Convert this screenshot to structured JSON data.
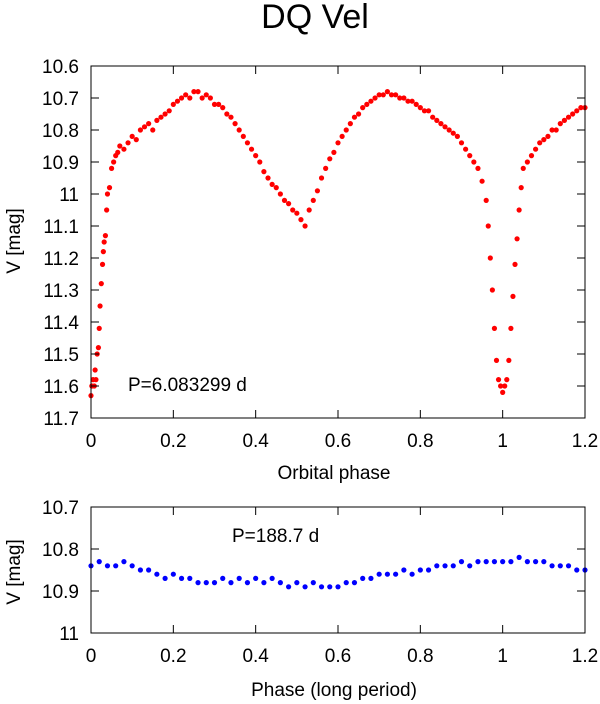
{
  "figure": {
    "title": "DQ Vel",
    "colors": {
      "top_series": "#ff0000",
      "bottom_series": "#0000ff"
    }
  },
  "chart_data": [
    {
      "type": "scatter",
      "name": "orbital-phase-light-curve",
      "title": "DQ Vel",
      "xlabel": "Orbital phase",
      "ylabel": "V [mag]",
      "xlim": [
        0,
        1.2
      ],
      "ylim": [
        11.7,
        10.6
      ],
      "y_inverted": true,
      "xticks": [
        "0",
        "0.2",
        "0.4",
        "0.6",
        "0.8",
        "1",
        "1.2"
      ],
      "yticks": [
        "10.6",
        "10.7",
        "10.8",
        "10.9",
        "11",
        "11.1",
        "11.2",
        "11.3",
        "11.4",
        "11.5",
        "11.6",
        "11.7"
      ],
      "annotation": "P=6.083299 d",
      "color": "#ff0000",
      "series": [
        {
          "name": "V magnitude",
          "points": [
            [
              0.0,
              11.63
            ],
            [
              0.002,
              11.6
            ],
            [
              0.005,
              11.58
            ],
            [
              0.008,
              11.6
            ],
            [
              0.01,
              11.55
            ],
            [
              0.012,
              11.58
            ],
            [
              0.015,
              11.5
            ],
            [
              0.018,
              11.48
            ],
            [
              0.02,
              11.42
            ],
            [
              0.022,
              11.35
            ],
            [
              0.025,
              11.28
            ],
            [
              0.028,
              11.22
            ],
            [
              0.03,
              11.18
            ],
            [
              0.032,
              11.15
            ],
            [
              0.035,
              11.13
            ],
            [
              0.038,
              11.05
            ],
            [
              0.04,
              11.0
            ],
            [
              0.045,
              10.98
            ],
            [
              0.05,
              10.92
            ],
            [
              0.055,
              10.9
            ],
            [
              0.06,
              10.88
            ],
            [
              0.065,
              10.87
            ],
            [
              0.07,
              10.85
            ],
            [
              0.08,
              10.86
            ],
            [
              0.09,
              10.84
            ],
            [
              0.1,
              10.82
            ],
            [
              0.11,
              10.83
            ],
            [
              0.12,
              10.8
            ],
            [
              0.13,
              10.79
            ],
            [
              0.14,
              10.78
            ],
            [
              0.15,
              10.8
            ],
            [
              0.16,
              10.77
            ],
            [
              0.17,
              10.76
            ],
            [
              0.18,
              10.75
            ],
            [
              0.19,
              10.74
            ],
            [
              0.2,
              10.72
            ],
            [
              0.21,
              10.71
            ],
            [
              0.22,
              10.7
            ],
            [
              0.23,
              10.69
            ],
            [
              0.24,
              10.7
            ],
            [
              0.25,
              10.68
            ],
            [
              0.26,
              10.68
            ],
            [
              0.27,
              10.7
            ],
            [
              0.28,
              10.69
            ],
            [
              0.29,
              10.7
            ],
            [
              0.3,
              10.72
            ],
            [
              0.31,
              10.72
            ],
            [
              0.32,
              10.73
            ],
            [
              0.33,
              10.75
            ],
            [
              0.34,
              10.76
            ],
            [
              0.35,
              10.78
            ],
            [
              0.36,
              10.8
            ],
            [
              0.37,
              10.82
            ],
            [
              0.38,
              10.84
            ],
            [
              0.39,
              10.86
            ],
            [
              0.4,
              10.88
            ],
            [
              0.41,
              10.9
            ],
            [
              0.42,
              10.93
            ],
            [
              0.43,
              10.95
            ],
            [
              0.44,
              10.97
            ],
            [
              0.45,
              10.98
            ],
            [
              0.46,
              11.0
            ],
            [
              0.47,
              11.02
            ],
            [
              0.48,
              11.03
            ],
            [
              0.49,
              11.05
            ],
            [
              0.5,
              11.06
            ],
            [
              0.51,
              11.08
            ],
            [
              0.52,
              11.1
            ],
            [
              0.53,
              11.05
            ],
            [
              0.54,
              11.02
            ],
            [
              0.55,
              10.99
            ],
            [
              0.56,
              10.95
            ],
            [
              0.57,
              10.92
            ],
            [
              0.58,
              10.89
            ],
            [
              0.59,
              10.87
            ],
            [
              0.6,
              10.84
            ],
            [
              0.61,
              10.82
            ],
            [
              0.62,
              10.8
            ],
            [
              0.63,
              10.78
            ],
            [
              0.64,
              10.76
            ],
            [
              0.65,
              10.75
            ],
            [
              0.66,
              10.73
            ],
            [
              0.67,
              10.72
            ],
            [
              0.68,
              10.71
            ],
            [
              0.69,
              10.7
            ],
            [
              0.7,
              10.69
            ],
            [
              0.71,
              10.69
            ],
            [
              0.72,
              10.68
            ],
            [
              0.73,
              10.69
            ],
            [
              0.74,
              10.69
            ],
            [
              0.75,
              10.7
            ],
            [
              0.76,
              10.7
            ],
            [
              0.77,
              10.71
            ],
            [
              0.78,
              10.71
            ],
            [
              0.79,
              10.72
            ],
            [
              0.8,
              10.73
            ],
            [
              0.81,
              10.74
            ],
            [
              0.82,
              10.74
            ],
            [
              0.83,
              10.76
            ],
            [
              0.84,
              10.77
            ],
            [
              0.85,
              10.78
            ],
            [
              0.86,
              10.79
            ],
            [
              0.87,
              10.8
            ],
            [
              0.88,
              10.81
            ],
            [
              0.89,
              10.82
            ],
            [
              0.9,
              10.84
            ],
            [
              0.91,
              10.86
            ],
            [
              0.92,
              10.88
            ],
            [
              0.93,
              10.9
            ],
            [
              0.94,
              10.92
            ],
            [
              0.95,
              10.96
            ],
            [
              0.96,
              11.02
            ],
            [
              0.965,
              11.1
            ],
            [
              0.97,
              11.2
            ],
            [
              0.975,
              11.3
            ],
            [
              0.98,
              11.42
            ],
            [
              0.985,
              11.52
            ],
            [
              0.99,
              11.58
            ],
            [
              0.995,
              11.6
            ],
            [
              1.0,
              11.62
            ],
            [
              1.005,
              11.6
            ],
            [
              1.01,
              11.58
            ],
            [
              1.015,
              11.52
            ],
            [
              1.02,
              11.42
            ],
            [
              1.025,
              11.32
            ],
            [
              1.03,
              11.22
            ],
            [
              1.035,
              11.14
            ],
            [
              1.04,
              11.05
            ],
            [
              1.045,
              10.98
            ],
            [
              1.05,
              10.92
            ],
            [
              1.06,
              10.9
            ],
            [
              1.07,
              10.88
            ],
            [
              1.08,
              10.86
            ],
            [
              1.09,
              10.84
            ],
            [
              1.1,
              10.83
            ],
            [
              1.11,
              10.82
            ],
            [
              1.12,
              10.8
            ],
            [
              1.13,
              10.8
            ],
            [
              1.14,
              10.78
            ],
            [
              1.15,
              10.77
            ],
            [
              1.16,
              10.76
            ],
            [
              1.17,
              10.75
            ],
            [
              1.18,
              10.74
            ],
            [
              1.19,
              10.73
            ],
            [
              1.2,
              10.73
            ]
          ]
        }
      ]
    },
    {
      "type": "scatter",
      "name": "long-period-light-curve",
      "xlabel": "Phase (long period)",
      "ylabel": "V [mag]",
      "xlim": [
        0,
        1.2
      ],
      "ylim": [
        11.0,
        10.7
      ],
      "y_inverted": true,
      "xticks": [
        "0",
        "0.2",
        "0.4",
        "0.6",
        "0.8",
        "1",
        "1.2"
      ],
      "yticks": [
        "10.7",
        "10.8",
        "10.9",
        "11"
      ],
      "annotation": "P=188.7 d",
      "color": "#0000ff",
      "series": [
        {
          "name": "V magnitude",
          "points": [
            [
              0.0,
              10.84
            ],
            [
              0.02,
              10.83
            ],
            [
              0.04,
              10.84
            ],
            [
              0.06,
              10.84
            ],
            [
              0.08,
              10.83
            ],
            [
              0.1,
              10.84
            ],
            [
              0.12,
              10.85
            ],
            [
              0.14,
              10.85
            ],
            [
              0.16,
              10.86
            ],
            [
              0.18,
              10.87
            ],
            [
              0.2,
              10.86
            ],
            [
              0.22,
              10.87
            ],
            [
              0.24,
              10.87
            ],
            [
              0.26,
              10.88
            ],
            [
              0.28,
              10.88
            ],
            [
              0.3,
              10.88
            ],
            [
              0.32,
              10.87
            ],
            [
              0.34,
              10.88
            ],
            [
              0.36,
              10.87
            ],
            [
              0.38,
              10.88
            ],
            [
              0.4,
              10.87
            ],
            [
              0.42,
              10.88
            ],
            [
              0.44,
              10.87
            ],
            [
              0.46,
              10.88
            ],
            [
              0.48,
              10.89
            ],
            [
              0.5,
              10.88
            ],
            [
              0.52,
              10.89
            ],
            [
              0.54,
              10.88
            ],
            [
              0.56,
              10.89
            ],
            [
              0.58,
              10.89
            ],
            [
              0.6,
              10.89
            ],
            [
              0.62,
              10.88
            ],
            [
              0.64,
              10.88
            ],
            [
              0.66,
              10.87
            ],
            [
              0.68,
              10.87
            ],
            [
              0.7,
              10.86
            ],
            [
              0.72,
              10.86
            ],
            [
              0.74,
              10.86
            ],
            [
              0.76,
              10.85
            ],
            [
              0.78,
              10.86
            ],
            [
              0.8,
              10.85
            ],
            [
              0.82,
              10.85
            ],
            [
              0.84,
              10.84
            ],
            [
              0.86,
              10.84
            ],
            [
              0.88,
              10.84
            ],
            [
              0.9,
              10.83
            ],
            [
              0.92,
              10.84
            ],
            [
              0.94,
              10.83
            ],
            [
              0.96,
              10.83
            ],
            [
              0.98,
              10.83
            ],
            [
              1.0,
              10.83
            ],
            [
              1.02,
              10.83
            ],
            [
              1.04,
              10.82
            ],
            [
              1.06,
              10.83
            ],
            [
              1.08,
              10.83
            ],
            [
              1.1,
              10.83
            ],
            [
              1.12,
              10.84
            ],
            [
              1.14,
              10.84
            ],
            [
              1.16,
              10.84
            ],
            [
              1.18,
              10.85
            ],
            [
              1.2,
              10.85
            ]
          ]
        }
      ]
    }
  ]
}
